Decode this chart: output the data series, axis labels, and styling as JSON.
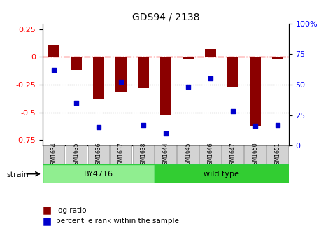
{
  "title": "GDS94 / 2138",
  "samples": [
    "GSM1634",
    "GSM1635",
    "GSM1636",
    "GSM1637",
    "GSM1638",
    "GSM1644",
    "GSM1645",
    "GSM1646",
    "GSM1647",
    "GSM1650",
    "GSM1651"
  ],
  "log_ratios": [
    0.1,
    -0.12,
    -0.38,
    -0.32,
    -0.28,
    -0.52,
    -0.02,
    0.07,
    -0.27,
    -0.62,
    -0.02
  ],
  "percentile_ranks": [
    62,
    35,
    15,
    52,
    17,
    10,
    48,
    55,
    28,
    16,
    17
  ],
  "strain_groups": [
    {
      "label": "BY4716",
      "start": 0,
      "end": 5,
      "color": "#90EE90"
    },
    {
      "label": "wild type",
      "start": 5,
      "end": 10,
      "color": "#32CD32"
    }
  ],
  "bar_color": "#8B0000",
  "dot_color": "#0000CD",
  "ylim_left": [
    -0.8,
    0.3
  ],
  "ylim_right": [
    0,
    100
  ],
  "yticks_left": [
    0.25,
    0,
    -0.25,
    -0.5,
    -0.75
  ],
  "yticks_right": [
    100,
    75,
    50,
    25,
    0
  ],
  "hline_y": 0,
  "dotted_hlines": [
    -0.25,
    -0.5
  ],
  "background_color": "#ffffff",
  "plot_bg": "#ffffff",
  "legend_log_ratio": "log ratio",
  "legend_percentile": "percentile rank within the sample",
  "strain_label": "strain"
}
